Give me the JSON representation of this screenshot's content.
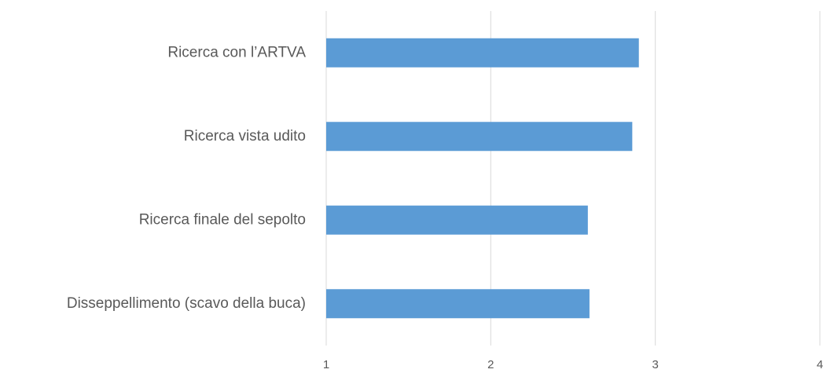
{
  "chart_data": {
    "type": "barh",
    "categories": [
      "Ricerca con l’ARTVA",
      "Ricerca vista udito",
      "Ricerca finale del sepolto",
      "Disseppellimento (scavo della buca)"
    ],
    "values": [
      2.9,
      2.86,
      2.59,
      2.6
    ],
    "color": "#5b9bd5",
    "xlim": [
      1,
      4
    ],
    "xticks": [
      1,
      2,
      3,
      4
    ],
    "grid": true
  }
}
